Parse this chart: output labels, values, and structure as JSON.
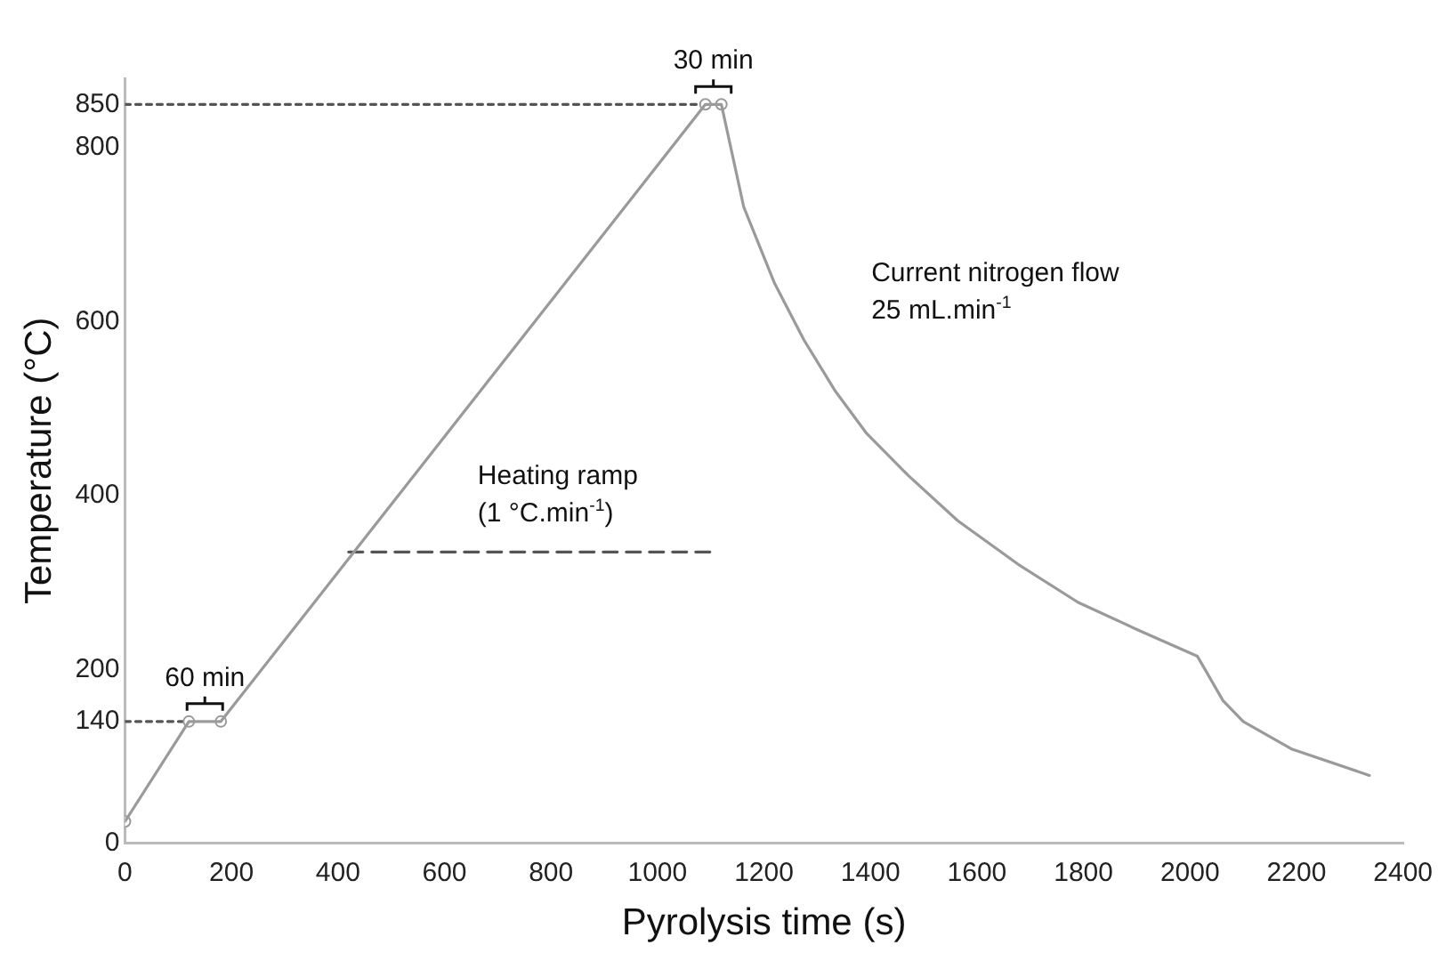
{
  "chart_data": {
    "type": "line",
    "xlabel": "Pyrolysis time (s)",
    "ylabel": "Temperature (°C)",
    "xlim": [
      0,
      2400
    ],
    "xticks": [
      0,
      200,
      400,
      600,
      800,
      1000,
      1200,
      1400,
      1600,
      1800,
      2000,
      2200,
      2400
    ],
    "ylim": [
      0,
      880
    ],
    "yticks": [
      0,
      140,
      200,
      400,
      600,
      800,
      850
    ],
    "grid": false,
    "legend": false,
    "marker": "none",
    "line_style": "solid",
    "series": [
      {
        "color": "#9a9a9a",
        "x": [
          0,
          120,
          180,
          1090,
          1120,
          1141,
          1162,
          1220,
          1275,
          1333,
          1392,
          1471,
          1564,
          1677,
          1790,
          1907,
          2014,
          2031,
          2062,
          2100,
          2192,
          2337
        ],
        "values": [
          25,
          140,
          140,
          850,
          850,
          791,
          732,
          644,
          579,
          521,
          472,
          423,
          371,
          321,
          277,
          244,
          215,
          197,
          164,
          140,
          108,
          78
        ]
      },
      {
        "type": "scatter",
        "color": "#9a9a9a",
        "marker": "circle",
        "x": [
          0,
          120,
          180,
          1090,
          1120
        ],
        "values": [
          25,
          140,
          140,
          850,
          850
        ]
      },
      {
        "color": "#555555",
        "line_style": "dotted",
        "x": [
          0,
          1090
        ],
        "values": [
          850,
          850
        ]
      },
      {
        "color": "#555555",
        "line_style": "dotted",
        "x": [
          0,
          120
        ],
        "values": [
          140,
          140
        ]
      },
      {
        "color": "#555555",
        "line_style": "dashed",
        "x": [
          420,
          1100
        ],
        "values": [
          335,
          335
        ]
      }
    ],
    "annotations": [
      {
        "text": "30 min",
        "x": 1105,
        "y": 850
      },
      {
        "text": "60 min",
        "x": 150,
        "y": 140
      },
      "Heating ramp\n(1 °C.min$^{-1}$)",
      "Current nitrogen flow\n25 mL.min$^{-1}$"
    ]
  }
}
